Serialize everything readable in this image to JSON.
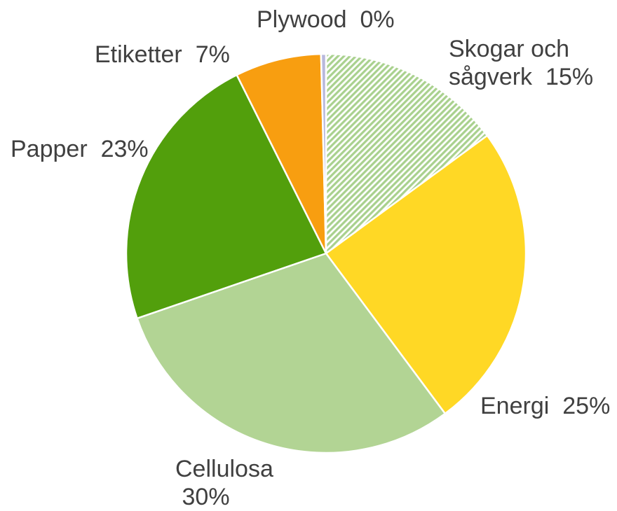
{
  "chart_data": {
    "type": "pie",
    "categories": [
      "Skogar och sågverk",
      "Energi",
      "Cellulosa",
      "Papper",
      "Etiketter",
      "Plywood"
    ],
    "values": [
      15,
      25,
      30,
      23,
      7,
      0.4
    ],
    "value_labels": [
      "15%",
      "25%",
      "30%",
      "23%",
      "7%",
      "0%"
    ],
    "colors": [
      "#a9d18e",
      "#ffd825",
      "#b2d494",
      "#529f0c",
      "#f89e10",
      "#b8b8dc"
    ],
    "hatched": [
      true,
      false,
      false,
      false,
      false,
      false
    ],
    "start_angle": 0,
    "direction": "clockwise"
  }
}
